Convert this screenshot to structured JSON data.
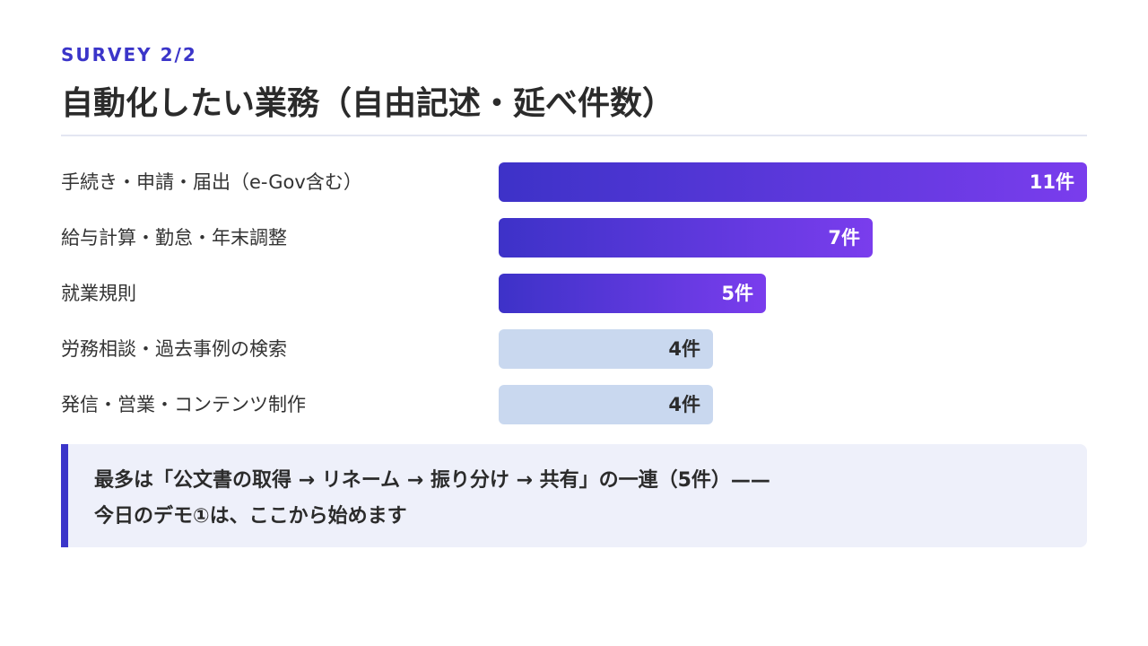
{
  "slide": {
    "eyebrow": "SURVEY 2/2",
    "title": "自動化したい業務（自由記述・延べ件数）"
  },
  "chart_data": {
    "type": "bar",
    "orientation": "horizontal",
    "title": "自動化したい業務（自由記述・延べ件数）",
    "categories": [
      "手続き・申請・届出（e-Gov含む）",
      "給与計算・勤怠・年末調整",
      "就業規則",
      "労務相談・過去事例の検索",
      "発信・営業・コンテンツ制作"
    ],
    "values": [
      11,
      7,
      5,
      4,
      4
    ],
    "value_labels": [
      "11件",
      "7件",
      "5件",
      "4件",
      "4件"
    ],
    "highlighted": [
      true,
      true,
      true,
      false,
      false
    ],
    "xlim": [
      0,
      11
    ],
    "grid": false,
    "colors": {
      "highlight_start": "#3d32c8",
      "highlight_end": "#7a3ded",
      "muted": "#c9d8ef"
    }
  },
  "callout": {
    "line1": "最多は「公文書の取得 → リネーム → 振り分け → 共有」の一連（5件）——",
    "line2": "今日のデモ①は、ここから始めます"
  }
}
